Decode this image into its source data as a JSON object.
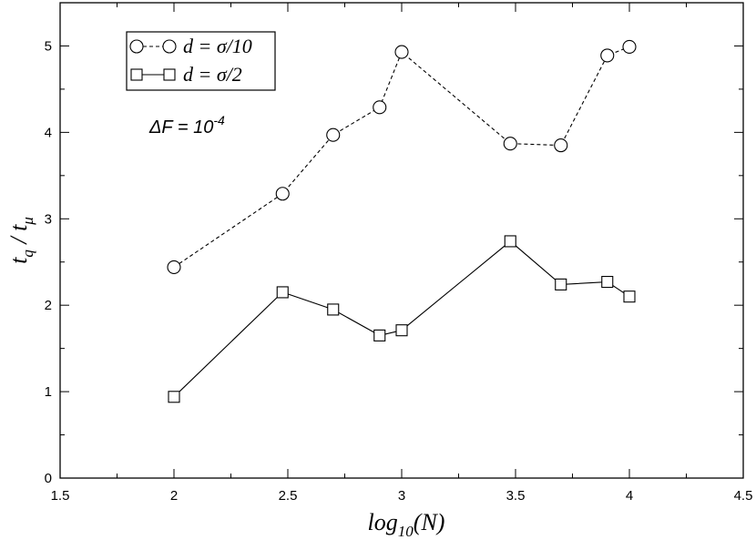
{
  "chart_data": {
    "type": "line",
    "xlabel": "log10(N)",
    "ylabel": "tq / tμ",
    "xlim": [
      1.5,
      4.5
    ],
    "ylim": [
      0,
      5.5
    ],
    "xticks": [
      1.5,
      2,
      2.5,
      3,
      3.5,
      4,
      4.5
    ],
    "xtick_labels": [
      "1.5",
      "2",
      "2.5",
      "3",
      "3.5",
      "4",
      "4.5"
    ],
    "yticks": [
      0,
      1,
      2,
      3,
      4,
      5
    ],
    "ytick_labels": [
      "0",
      "1",
      "2",
      "3",
      "4",
      "5"
    ],
    "grid": false,
    "legend_position": "top-left",
    "series": [
      {
        "name": "d = σ/10",
        "marker": "circle",
        "line_style": "dashed",
        "x": [
          2.0,
          2.477,
          2.699,
          2.903,
          3.0,
          3.477,
          3.699,
          3.903,
          4.0
        ],
        "y": [
          2.44,
          3.29,
          3.97,
          4.29,
          4.93,
          3.87,
          3.85,
          4.89,
          4.99
        ]
      },
      {
        "name": "d = σ/2",
        "marker": "square",
        "line_style": "solid",
        "x": [
          2.0,
          2.477,
          2.699,
          2.903,
          3.0,
          3.477,
          3.699,
          3.903,
          4.0
        ],
        "y": [
          0.94,
          2.15,
          1.95,
          1.65,
          1.71,
          2.74,
          2.24,
          2.27,
          2.1
        ]
      }
    ],
    "annotation": "ΔF = 10-4"
  },
  "text": {
    "xlabel_main": "log",
    "xlabel_sub": "10",
    "xlabel_tail": "(N)",
    "ylabel_t1": "t",
    "ylabel_sub1": "q",
    "ylabel_mid": " / t",
    "ylabel_sub2": "μ",
    "legend_1": "d = σ/10",
    "legend_2": "d = σ/2",
    "annot_main": "ΔF = 10",
    "annot_sup": "-4"
  },
  "colors": {
    "line": "#000000",
    "background": "#ffffff"
  }
}
